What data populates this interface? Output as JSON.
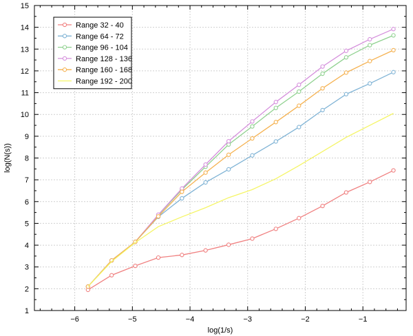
{
  "chart_data": {
    "type": "line",
    "xlabel": "log(1/s)",
    "ylabel": "log(N(s))",
    "xlim": [
      -6.7,
      -0.25
    ],
    "ylim": [
      1,
      15
    ],
    "x_ticks": [
      -6,
      -5,
      -4,
      -3,
      -2,
      -1
    ],
    "x_tick_labels": [
      "−6",
      "−5",
      "−4",
      "−3",
      "−2",
      "−1"
    ],
    "y_ticks": [
      1,
      2,
      3,
      4,
      5,
      6,
      7,
      8,
      9,
      10,
      11,
      12,
      13,
      14,
      15
    ],
    "y_tick_labels": [
      "1",
      "2",
      "3",
      "4",
      "5",
      "6",
      "7",
      "8",
      "9",
      "10",
      "11",
      "12",
      "13",
      "14",
      "15"
    ],
    "grid": true,
    "legend_position": "top-left",
    "x": [
      -5.77,
      -5.36,
      -4.95,
      -4.55,
      -4.14,
      -3.73,
      -3.33,
      -2.92,
      -2.51,
      -2.11,
      -1.7,
      -1.29,
      -0.88,
      -0.47
    ],
    "series": [
      {
        "name": "Range 32 - 40",
        "color": "#f08080",
        "markers": true,
        "values": [
          1.95,
          2.62,
          3.05,
          3.43,
          3.55,
          3.76,
          4.02,
          4.3,
          4.75,
          5.24,
          5.8,
          6.42,
          6.9,
          7.43
        ]
      },
      {
        "name": "Range 64 - 72",
        "color": "#7fb3d5",
        "markers": true,
        "values": [
          2.1,
          3.3,
          4.15,
          5.3,
          6.15,
          6.88,
          7.48,
          8.12,
          8.76,
          9.42,
          10.2,
          10.93,
          11.42,
          11.94
        ]
      },
      {
        "name": "Range 96 - 104",
        "color": "#8fd18f",
        "markers": true,
        "values": [
          2.1,
          3.3,
          4.15,
          5.38,
          6.55,
          7.6,
          8.62,
          9.45,
          10.3,
          11.05,
          11.87,
          12.62,
          13.18,
          13.63
        ]
      },
      {
        "name": "Range 128 - 136",
        "color": "#d58fdc",
        "markers": true,
        "values": [
          2.1,
          3.3,
          4.15,
          5.4,
          6.6,
          7.7,
          8.77,
          9.68,
          10.57,
          11.36,
          12.2,
          12.92,
          13.45,
          13.92
        ]
      },
      {
        "name": "Range 160 - 168",
        "color": "#f5b14f",
        "markers": true,
        "values": [
          2.1,
          3.3,
          4.15,
          5.32,
          6.45,
          7.33,
          8.15,
          8.9,
          9.65,
          10.4,
          11.2,
          11.92,
          12.45,
          12.95
        ]
      },
      {
        "name": "Range 192 - 200",
        "color": "#f5f566",
        "markers": false,
        "values": [
          2.1,
          3.25,
          4.12,
          4.85,
          5.3,
          5.72,
          6.18,
          6.55,
          7.05,
          7.65,
          8.3,
          8.95,
          9.5,
          10.05
        ]
      }
    ]
  }
}
